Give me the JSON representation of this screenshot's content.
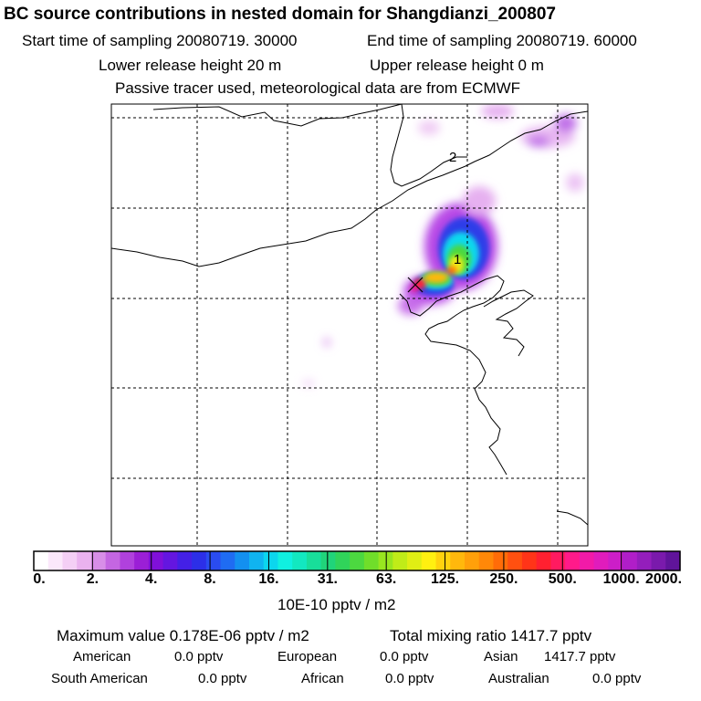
{
  "title": "BC  source contributions in nested domain for Shangdianzi_200807",
  "sampling": {
    "start": "Start time of sampling 20080719. 30000",
    "end": "End time of sampling 20080719. 60000"
  },
  "release": {
    "lower": "Lower release height   20 m",
    "upper": "Upper release height    0 m"
  },
  "tracer_note": "Passive tracer used, meteorological data are from ECMWF",
  "map": {
    "site_labels": [
      "1",
      "2"
    ]
  },
  "colorbar": {
    "tick_labels": [
      "0.",
      "2.",
      "4.",
      "8.",
      "16.",
      "31.",
      "63.",
      "125.",
      "250.",
      "500.",
      "1000.",
      "2000."
    ],
    "unit_label": "10E-10 pptv / m2",
    "colors": [
      "#ffffff",
      "#fbe8fb",
      "#f4cff5",
      "#eab2ef",
      "#d88ee8",
      "#c466e2",
      "#b041dd",
      "#9b1fd6",
      "#8010d9",
      "#6416e0",
      "#4420e6",
      "#2c2fe8",
      "#2a4cf0",
      "#1f6cf2",
      "#1390f0",
      "#10b4f0",
      "#0cd6ee",
      "#10f0e0",
      "#12e8c0",
      "#18de9a",
      "#20d47a",
      "#30d45a",
      "#4cd840",
      "#70de2a",
      "#98e620",
      "#c0ec18",
      "#e0ee14",
      "#fff010",
      "#ffd20e",
      "#ffb80c",
      "#ffa00a",
      "#ff8808",
      "#ff6c08",
      "#ff5010",
      "#ff3418",
      "#ff2030",
      "#ff1a60",
      "#ff1a8a",
      "#f21aa8",
      "#e01cbc",
      "#cc1ec8",
      "#b01ec8",
      "#941ebc",
      "#7a1aac",
      "#60149a"
    ]
  },
  "stats": {
    "max_value": "Maximum value  0.178E-06 pptv / m2",
    "total_mixing_ratio": "Total mixing ratio     1417.7 pptv",
    "regions": [
      {
        "name": "American",
        "value": "0.0 pptv"
      },
      {
        "name": "European",
        "value": "0.0 pptv"
      },
      {
        "name": "Asian",
        "value": "1417.7 pptv"
      },
      {
        "name": "South American",
        "value": "0.0 pptv"
      },
      {
        "name": "African",
        "value": "0.0 pptv"
      },
      {
        "name": "Australian",
        "value": "0.0 pptv"
      }
    ]
  }
}
